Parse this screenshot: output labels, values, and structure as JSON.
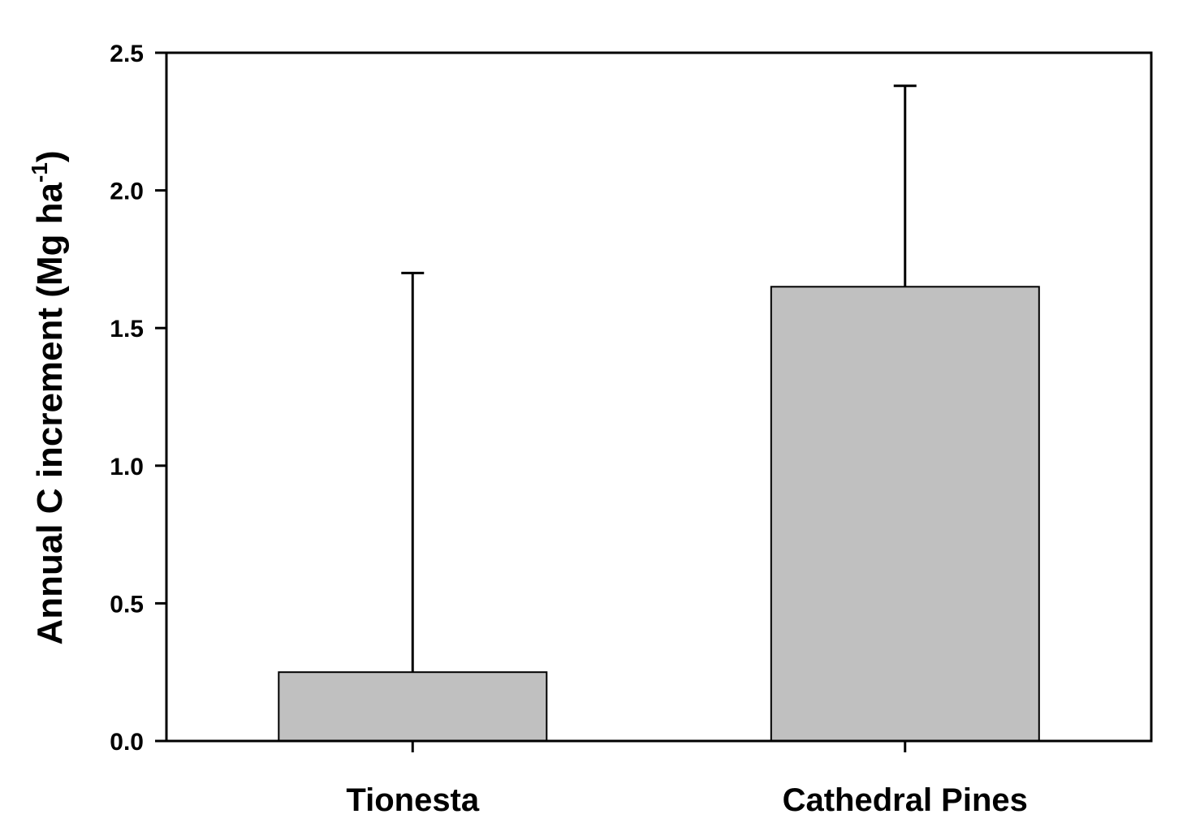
{
  "chart_data": {
    "type": "bar",
    "title": "",
    "categories": [
      "Tionesta",
      "Cathedral Pines"
    ],
    "series": [
      {
        "values": [
          0.25,
          1.65
        ],
        "error_upper": [
          1.7,
          2.38
        ]
      }
    ],
    "ylabel": {
      "text": "Annual C increment (Mg ha",
      "superscript": "-1",
      "closing": ")"
    },
    "xlabel": "",
    "ylim": [
      0,
      2.5
    ],
    "yticks": [
      "0.0",
      "0.5",
      "1.0",
      "1.5",
      "2.0",
      "2.5"
    ],
    "grid": false,
    "legend": "none",
    "colors": {
      "bar_fill": "#c0c0c0",
      "bar_stroke": "#000000",
      "axis": "#000000",
      "error_bar": "#000000"
    }
  }
}
